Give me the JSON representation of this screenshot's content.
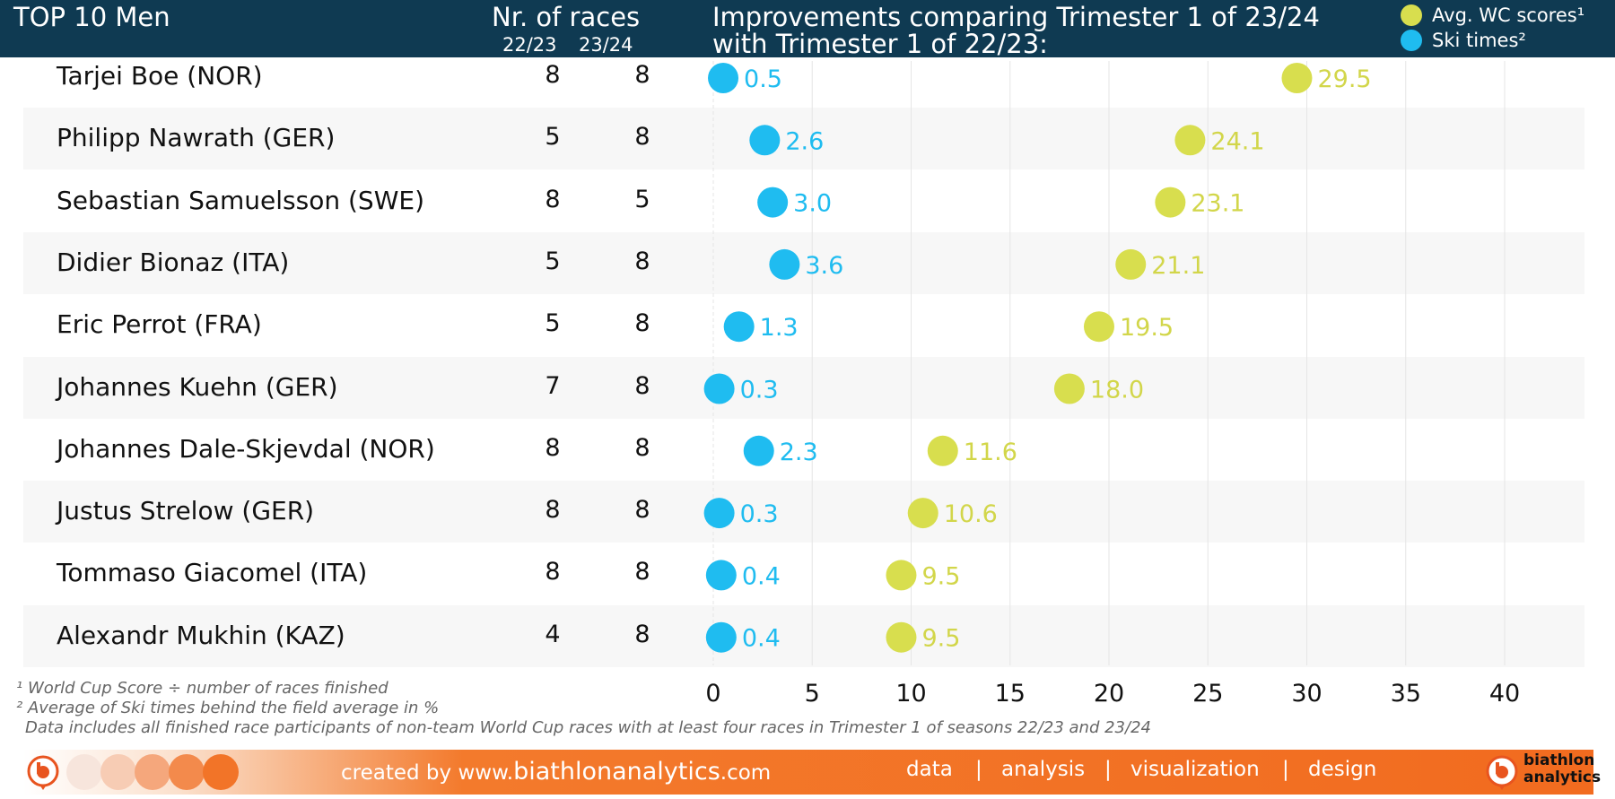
{
  "header": {
    "title": "TOP 10 Men",
    "races_title": "Nr. of races",
    "season1": "22/23",
    "season2": "23/24",
    "improvements_line1": "Improvements comparing Trimester 1 of 23/24",
    "improvements_line2": "with Trimester 1 of 22/23:"
  },
  "legend": [
    {
      "label": "Avg. WC scores¹",
      "color": "#d8de4e"
    },
    {
      "label": "Ski times²",
      "color": "#1fbcf0"
    }
  ],
  "athletes": [
    {
      "name": "Tarjei Boe (NOR)",
      "races_2223": "8",
      "races_2324": "8",
      "ski": 0.5,
      "ski_label": "0.5",
      "wc": 29.5,
      "wc_label": "29.5"
    },
    {
      "name": "Philipp Nawrath (GER)",
      "races_2223": "5",
      "races_2324": "8",
      "ski": 2.6,
      "ski_label": "2.6",
      "wc": 24.1,
      "wc_label": "24.1"
    },
    {
      "name": "Sebastian Samuelsson (SWE)",
      "races_2223": "8",
      "races_2324": "5",
      "ski": 3.0,
      "ski_label": "3.0",
      "wc": 23.1,
      "wc_label": "23.1"
    },
    {
      "name": "Didier Bionaz (ITA)",
      "races_2223": "5",
      "races_2324": "8",
      "ski": 3.6,
      "ski_label": "3.6",
      "wc": 21.1,
      "wc_label": "21.1"
    },
    {
      "name": "Eric Perrot (FRA)",
      "races_2223": "5",
      "races_2324": "8",
      "ski": 1.3,
      "ski_label": "1.3",
      "wc": 19.5,
      "wc_label": "19.5"
    },
    {
      "name": "Johannes Kuehn (GER)",
      "races_2223": "7",
      "races_2324": "8",
      "ski": 0.3,
      "ski_label": "0.3",
      "wc": 18.0,
      "wc_label": "18.0"
    },
    {
      "name": "Johannes Dale-Skjevdal (NOR)",
      "races_2223": "8",
      "races_2324": "8",
      "ski": 2.3,
      "ski_label": "2.3",
      "wc": 11.6,
      "wc_label": "11.6"
    },
    {
      "name": "Justus Strelow (GER)",
      "races_2223": "8",
      "races_2324": "8",
      "ski": 0.3,
      "ski_label": "0.3",
      "wc": 10.6,
      "wc_label": "10.6"
    },
    {
      "name": "Tommaso Giacomel (ITA)",
      "races_2223": "8",
      "races_2324": "8",
      "ski": 0.4,
      "ski_label": "0.4",
      "wc": 9.5,
      "wc_label": "9.5"
    },
    {
      "name": "Alexandr Mukhin (KAZ)",
      "races_2223": "4",
      "races_2324": "8",
      "ski": 0.4,
      "ski_label": "0.4",
      "wc": 9.5,
      "wc_label": "9.5"
    }
  ],
  "chart_data": {
    "type": "scatter",
    "categories": [
      "Tarjei Boe (NOR)",
      "Philipp Nawrath (GER)",
      "Sebastian Samuelsson (SWE)",
      "Didier Bionaz (ITA)",
      "Eric Perrot (FRA)",
      "Johannes Kuehn (GER)",
      "Johannes Dale-Skjevdal (NOR)",
      "Justus Strelow (GER)",
      "Tommaso Giacomel (ITA)",
      "Alexandr Mukhin (KAZ)"
    ],
    "series": [
      {
        "name": "Avg. WC scores¹",
        "values": [
          29.5,
          24.1,
          23.1,
          21.1,
          19.5,
          18.0,
          11.6,
          10.6,
          9.5,
          9.5
        ]
      },
      {
        "name": "Ski times²",
        "values": [
          0.5,
          2.6,
          3.0,
          3.6,
          1.3,
          0.3,
          2.3,
          0.3,
          0.4,
          0.4
        ]
      }
    ],
    "title": "Improvements comparing Trimester 1 of 23/24 with Trimester 1 of 22/23:",
    "xlim": [
      0,
      40
    ],
    "xticks": [
      "0",
      "5",
      "10",
      "15",
      "20",
      "25",
      "30",
      "35",
      "40"
    ],
    "grid": true,
    "legend": "top-right"
  },
  "footnotes": {
    "fn1": "¹ World Cup Score ÷ number of races finished",
    "fn2": "² Average of Ski times behind the field average in %",
    "fn3": "Data includes all finished race participants of non-team World Cup races with at least four races in Trimester 1 of seasons 22/23 and 23/24"
  },
  "footer": {
    "created_prefix": "created by www.",
    "created_domain": "biathlonanalytics",
    "created_suffix": ".com",
    "nav": [
      "data",
      "|",
      "analysis",
      "|",
      "visualization",
      "|",
      "design"
    ],
    "brand_line1": "biathlon",
    "brand_line2": "analytics"
  }
}
